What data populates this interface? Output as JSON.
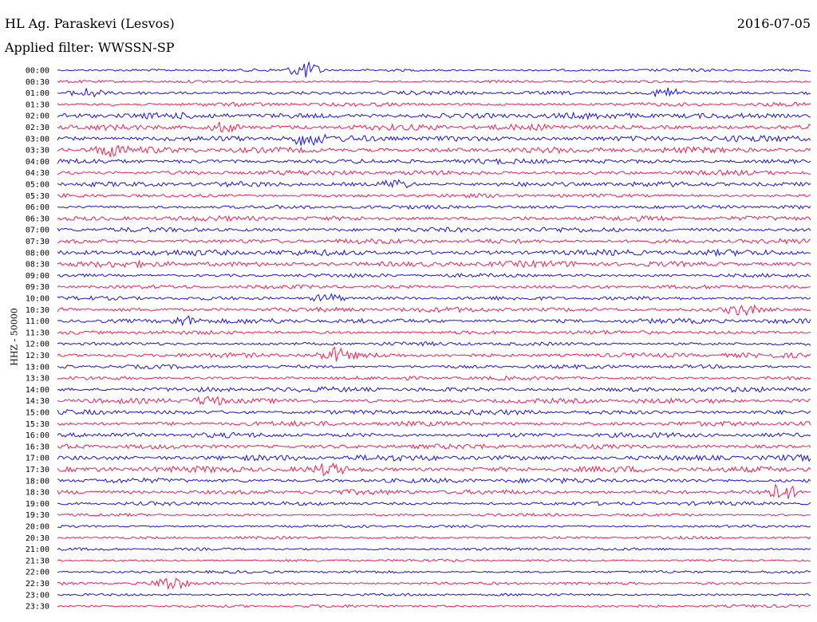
{
  "header": {
    "station": "HL Ag. Paraskevi (Lesvos)",
    "date": "2016-07-05",
    "filter": "Applied filter: WWSSN-SP"
  },
  "axis": {
    "ylabel": "HHZ - 50000"
  },
  "colors": {
    "even_row": "#1a0ff0",
    "odd_row": "#ff1a4f",
    "background": "#ffffff"
  },
  "chart_data": {
    "type": "line",
    "description_of_rows": "helicorder",
    "row_labels": [
      "00:00",
      "00:30",
      "01:00",
      "01:30",
      "02:00",
      "02:30",
      "03:00",
      "03:30",
      "04:00",
      "04:30",
      "05:00",
      "05:30",
      "06:00",
      "06:30",
      "07:00",
      "07:30",
      "08:00",
      "08:30",
      "09:00",
      "09:30",
      "10:00",
      "10:30",
      "11:00",
      "11:30",
      "12:00",
      "12:30",
      "13:00",
      "13:30",
      "14:00",
      "14:30",
      "15:00",
      "15:30",
      "16:00",
      "16:30",
      "17:00",
      "17:30",
      "18:00",
      "18:30",
      "19:00",
      "19:30",
      "20:00",
      "20:30",
      "21:00",
      "21:30",
      "22:00",
      "22:30",
      "23:00",
      "23:30"
    ],
    "row_activity": [
      1,
      1,
      2,
      2,
      4,
      4,
      4,
      4,
      3,
      3,
      3,
      2,
      2,
      3,
      3,
      3,
      4,
      4,
      2,
      2,
      2,
      3,
      3,
      2,
      2,
      3,
      2,
      2,
      3,
      3,
      3,
      3,
      3,
      3,
      4,
      4,
      3,
      3,
      2,
      1,
      1,
      1,
      1,
      1,
      1,
      1,
      1,
      1
    ],
    "events": [
      {
        "row": 0,
        "x": 0.33,
        "amp": 3.5
      },
      {
        "row": 2,
        "x": 0.04,
        "amp": 2
      },
      {
        "row": 2,
        "x": 0.81,
        "amp": 2.5
      },
      {
        "row": 5,
        "x": 0.22,
        "amp": 2
      },
      {
        "row": 6,
        "x": 0.33,
        "amp": 2.5
      },
      {
        "row": 7,
        "x": 0.07,
        "amp": 2
      },
      {
        "row": 10,
        "x": 0.45,
        "amp": 2
      },
      {
        "row": 20,
        "x": 0.36,
        "amp": 2
      },
      {
        "row": 21,
        "x": 0.91,
        "amp": 2
      },
      {
        "row": 22,
        "x": 0.17,
        "amp": 2
      },
      {
        "row": 25,
        "x": 0.37,
        "amp": 2.5
      },
      {
        "row": 29,
        "x": 0.2,
        "amp": 2
      },
      {
        "row": 35,
        "x": 0.36,
        "amp": 2
      },
      {
        "row": 37,
        "x": 0.96,
        "amp": 3
      },
      {
        "row": 45,
        "x": 0.15,
        "amp": 3
      }
    ]
  }
}
